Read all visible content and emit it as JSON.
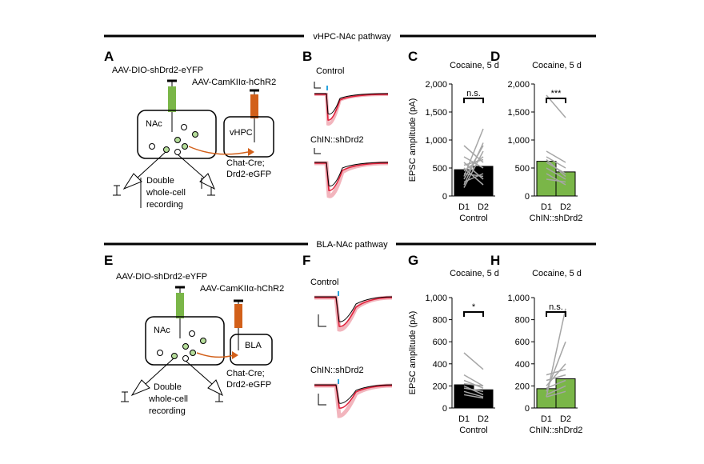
{
  "sections": [
    {
      "title": "vHPC-NAc pathway"
    },
    {
      "title": "BLA-NAc pathway"
    }
  ],
  "schematics": [
    {
      "label": "A",
      "virus1": "AAV-DIO-shDrd2-eYFP",
      "virus2": "AAV-CamKIIα-hChR2",
      "region1": "NAc",
      "region2": "vHPC",
      "mouse": [
        "Chat-Cre;",
        "Drd2-eGFP"
      ],
      "recording": [
        "Double",
        "whole-cell",
        "recording"
      ]
    },
    {
      "label": "E",
      "virus1": "AAV-DIO-shDrd2-eYFP",
      "virus2": "AAV-CamKIIα-hChR2",
      "region1": "NAc",
      "region2": "BLA",
      "mouse": [
        "Chat-Cre;",
        "Drd2-eGFP"
      ],
      "recording": [
        "Double",
        "whole-cell",
        "recording"
      ]
    }
  ],
  "traces": [
    {
      "label": "B",
      "conditions": [
        "Control",
        "ChIN::shDrd2"
      ]
    },
    {
      "label": "F",
      "conditions": [
        "Control",
        "ChIN::shDrd2"
      ]
    }
  ],
  "chart_data": [
    {
      "type": "bar",
      "label": "C",
      "title": "Cocaine, 5 d",
      "ylabel": "EPSC amplitude (pA)",
      "categories": [
        "D1",
        "D2"
      ],
      "group": "Control",
      "values": [
        470,
        530
      ],
      "color": "#000000",
      "pair_color": "#a6a6a6",
      "significance": "n.s.",
      "ylim": [
        0,
        2000
      ],
      "yticks": [
        0,
        500,
        {
          "value": 1000,
          "label": "1,000"
        },
        {
          "value": 1500,
          "label": "1,500"
        },
        {
          "value": 2000,
          "label": "2,000"
        }
      ],
      "pairs": [
        [
          300,
          900
        ],
        [
          450,
          700
        ],
        [
          200,
          950
        ],
        [
          600,
          300
        ],
        [
          350,
          1200
        ],
        [
          500,
          200
        ],
        [
          700,
          500
        ],
        [
          250,
          400
        ],
        [
          900,
          600
        ],
        [
          150,
          800
        ],
        [
          400,
          350
        ],
        [
          550,
          650
        ]
      ]
    },
    {
      "type": "bar",
      "label": "D",
      "title": "Cocaine, 5 d",
      "categories": [
        "D1",
        "D2"
      ],
      "group": "ChIN::shDrd2",
      "values": [
        620,
        430
      ],
      "color": "#7ab648",
      "pair_color": "#a6a6a6",
      "significance": "***",
      "ylim": [
        0,
        2000
      ],
      "yticks": [
        0,
        500,
        {
          "value": 1000,
          "label": "1,000"
        },
        {
          "value": 1500,
          "label": "1,500"
        },
        {
          "value": 2000,
          "label": "2,000"
        }
      ],
      "pairs": [
        [
          1800,
          1400
        ],
        [
          700,
          500
        ],
        [
          500,
          300
        ],
        [
          600,
          400
        ],
        [
          400,
          200
        ],
        [
          800,
          600
        ],
        [
          650,
          350
        ],
        [
          300,
          250
        ]
      ]
    },
    {
      "type": "bar",
      "label": "G",
      "title": "Cocaine, 5 d",
      "ylabel": "EPSC amplitude (pA)",
      "categories": [
        "D1",
        "D2"
      ],
      "group": "Control",
      "values": [
        210,
        165
      ],
      "color": "#000000",
      "pair_color": "#a6a6a6",
      "significance": "*",
      "ylim": [
        0,
        1000
      ],
      "yticks": [
        0,
        200,
        400,
        600,
        800,
        {
          "value": 1000,
          "label": "1,000"
        }
      ],
      "pairs": [
        [
          500,
          350
        ],
        [
          300,
          200
        ],
        [
          250,
          180
        ],
        [
          200,
          120
        ],
        [
          150,
          100
        ],
        [
          180,
          150
        ],
        [
          220,
          200
        ],
        [
          120,
          90
        ]
      ]
    },
    {
      "type": "bar",
      "label": "H",
      "title": "Cocaine, 5 d",
      "categories": [
        "D1",
        "D2"
      ],
      "group": "ChIN::shDrd2",
      "values": [
        175,
        265
      ],
      "color": "#7ab648",
      "pair_color": "#a6a6a6",
      "significance": "n.s.",
      "ylim": [
        0,
        1000
      ],
      "yticks": [
        0,
        200,
        400,
        600,
        800,
        {
          "value": 1000,
          "label": "1,000"
        }
      ],
      "pairs": [
        [
          100,
          900
        ],
        [
          150,
          600
        ],
        [
          200,
          400
        ],
        [
          250,
          300
        ],
        [
          120,
          200
        ],
        [
          180,
          250
        ],
        [
          300,
          350
        ],
        [
          100,
          150
        ]
      ]
    }
  ]
}
